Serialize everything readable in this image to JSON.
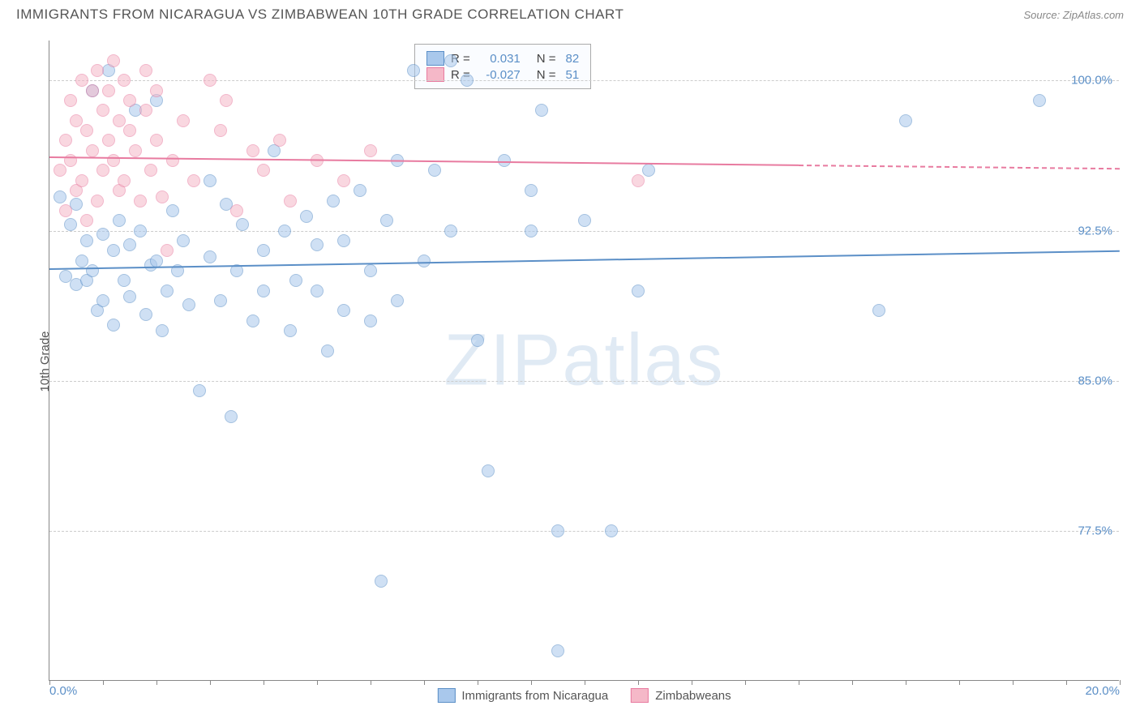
{
  "title": "IMMIGRANTS FROM NICARAGUA VS ZIMBABWEAN 10TH GRADE CORRELATION CHART",
  "source": "Source: ZipAtlas.com",
  "watermark_zip": "ZIP",
  "watermark_atlas": "atlas",
  "y_axis_label": "10th Grade",
  "chart": {
    "type": "scatter",
    "background_color": "#ffffff",
    "grid_color": "#cccccc",
    "axis_color": "#888888",
    "tick_label_color": "#5b8fc7",
    "xlim": [
      0,
      20
    ],
    "ylim": [
      70,
      102
    ],
    "x_ticks": [
      0,
      1,
      2,
      3,
      4,
      5,
      6,
      7,
      8,
      9,
      10,
      11,
      12,
      13,
      14,
      15,
      16,
      17,
      18,
      19,
      20
    ],
    "x_tick_labels": {
      "0": "0.0%",
      "20": "20.0%"
    },
    "y_ticks": [
      77.5,
      85.0,
      92.5,
      100.0
    ],
    "y_tick_labels": [
      "77.5%",
      "85.0%",
      "92.5%",
      "100.0%"
    ],
    "point_radius": 8,
    "point_opacity": 0.55,
    "series": [
      {
        "name": "Immigrants from Nicaragua",
        "color_fill": "#a9c8ec",
        "color_stroke": "#5b8fc7",
        "r_label": "R =",
        "r_value": "0.031",
        "n_label": "N =",
        "n_value": "82",
        "trend": {
          "y_start": 90.6,
          "y_end": 91.5,
          "x_start": 0,
          "x_end": 20,
          "dash_from": 20
        },
        "points": [
          [
            0.2,
            94.2
          ],
          [
            0.3,
            90.2
          ],
          [
            0.4,
            92.8
          ],
          [
            0.5,
            93.8
          ],
          [
            0.5,
            89.8
          ],
          [
            0.6,
            91.0
          ],
          [
            0.7,
            92.0
          ],
          [
            0.7,
            90.0
          ],
          [
            0.8,
            99.5
          ],
          [
            0.8,
            90.5
          ],
          [
            0.9,
            88.5
          ],
          [
            1.0,
            92.3
          ],
          [
            1.0,
            89.0
          ],
          [
            1.1,
            100.5
          ],
          [
            1.2,
            91.5
          ],
          [
            1.2,
            87.8
          ],
          [
            1.3,
            93.0
          ],
          [
            1.4,
            90.0
          ],
          [
            1.5,
            89.2
          ],
          [
            1.5,
            91.8
          ],
          [
            1.6,
            98.5
          ],
          [
            1.7,
            92.5
          ],
          [
            1.8,
            88.3
          ],
          [
            1.9,
            90.8
          ],
          [
            2.0,
            99.0
          ],
          [
            2.0,
            91.0
          ],
          [
            2.1,
            87.5
          ],
          [
            2.2,
            89.5
          ],
          [
            2.3,
            93.5
          ],
          [
            2.4,
            90.5
          ],
          [
            2.5,
            92.0
          ],
          [
            2.6,
            88.8
          ],
          [
            2.8,
            84.5
          ],
          [
            3.0,
            91.2
          ],
          [
            3.0,
            95.0
          ],
          [
            3.2,
            89.0
          ],
          [
            3.3,
            93.8
          ],
          [
            3.4,
            83.2
          ],
          [
            3.5,
            90.5
          ],
          [
            3.6,
            92.8
          ],
          [
            3.8,
            88.0
          ],
          [
            4.0,
            91.5
          ],
          [
            4.0,
            89.5
          ],
          [
            4.2,
            96.5
          ],
          [
            4.4,
            92.5
          ],
          [
            4.5,
            87.5
          ],
          [
            4.6,
            90.0
          ],
          [
            4.8,
            93.2
          ],
          [
            5.0,
            89.5
          ],
          [
            5.0,
            91.8
          ],
          [
            5.2,
            86.5
          ],
          [
            5.5,
            88.5
          ],
          [
            5.5,
            92.0
          ],
          [
            5.8,
            94.5
          ],
          [
            6.0,
            90.5
          ],
          [
            6.0,
            88.0
          ],
          [
            6.2,
            75.0
          ],
          [
            6.3,
            93.0
          ],
          [
            6.5,
            89.0
          ],
          [
            6.8,
            100.5
          ],
          [
            7.0,
            91.0
          ],
          [
            7.2,
            95.5
          ],
          [
            7.5,
            92.5
          ],
          [
            7.8,
            100.0
          ],
          [
            8.0,
            87.0
          ],
          [
            8.2,
            80.5
          ],
          [
            8.5,
            96.0
          ],
          [
            9.0,
            92.5
          ],
          [
            9.0,
            94.5
          ],
          [
            9.2,
            98.5
          ],
          [
            9.5,
            71.5
          ],
          [
            9.5,
            77.5
          ],
          [
            10.0,
            93.0
          ],
          [
            10.5,
            77.5
          ],
          [
            11.0,
            89.5
          ],
          [
            11.2,
            95.5
          ],
          [
            15.5,
            88.5
          ],
          [
            16.0,
            98.0
          ],
          [
            18.5,
            99.0
          ],
          [
            7.5,
            101.0
          ],
          [
            6.5,
            96.0
          ],
          [
            5.3,
            94.0
          ]
        ]
      },
      {
        "name": "Zimbabweans",
        "color_fill": "#f5b8c8",
        "color_stroke": "#e87ba0",
        "r_label": "R =",
        "r_value": "-0.027",
        "n_label": "N =",
        "n_value": "51",
        "trend": {
          "y_start": 96.2,
          "y_end": 95.8,
          "x_start": 0,
          "x_end": 14,
          "dash_from": 14,
          "dash_to": 20
        },
        "points": [
          [
            0.2,
            95.5
          ],
          [
            0.3,
            97.0
          ],
          [
            0.3,
            93.5
          ],
          [
            0.4,
            99.0
          ],
          [
            0.4,
            96.0
          ],
          [
            0.5,
            94.5
          ],
          [
            0.5,
            98.0
          ],
          [
            0.6,
            100.0
          ],
          [
            0.6,
            95.0
          ],
          [
            0.7,
            97.5
          ],
          [
            0.7,
            93.0
          ],
          [
            0.8,
            99.5
          ],
          [
            0.8,
            96.5
          ],
          [
            0.9,
            94.0
          ],
          [
            0.9,
            100.5
          ],
          [
            1.0,
            98.5
          ],
          [
            1.0,
            95.5
          ],
          [
            1.1,
            97.0
          ],
          [
            1.1,
            99.5
          ],
          [
            1.2,
            96.0
          ],
          [
            1.2,
            101.0
          ],
          [
            1.3,
            94.5
          ],
          [
            1.3,
            98.0
          ],
          [
            1.4,
            100.0
          ],
          [
            1.4,
            95.0
          ],
          [
            1.5,
            97.5
          ],
          [
            1.5,
            99.0
          ],
          [
            1.6,
            96.5
          ],
          [
            1.7,
            94.0
          ],
          [
            1.8,
            100.5
          ],
          [
            1.8,
            98.5
          ],
          [
            1.9,
            95.5
          ],
          [
            2.0,
            99.5
          ],
          [
            2.0,
            97.0
          ],
          [
            2.1,
            94.2
          ],
          [
            2.2,
            91.5
          ],
          [
            2.3,
            96.0
          ],
          [
            2.5,
            98.0
          ],
          [
            2.7,
            95.0
          ],
          [
            3.0,
            100.0
          ],
          [
            3.2,
            97.5
          ],
          [
            3.3,
            99.0
          ],
          [
            3.5,
            93.5
          ],
          [
            3.8,
            96.5
          ],
          [
            4.0,
            95.5
          ],
          [
            4.3,
            97.0
          ],
          [
            4.5,
            94.0
          ],
          [
            5.0,
            96.0
          ],
          [
            5.5,
            95.0
          ],
          [
            6.0,
            96.5
          ],
          [
            11.0,
            95.0
          ]
        ]
      }
    ]
  }
}
